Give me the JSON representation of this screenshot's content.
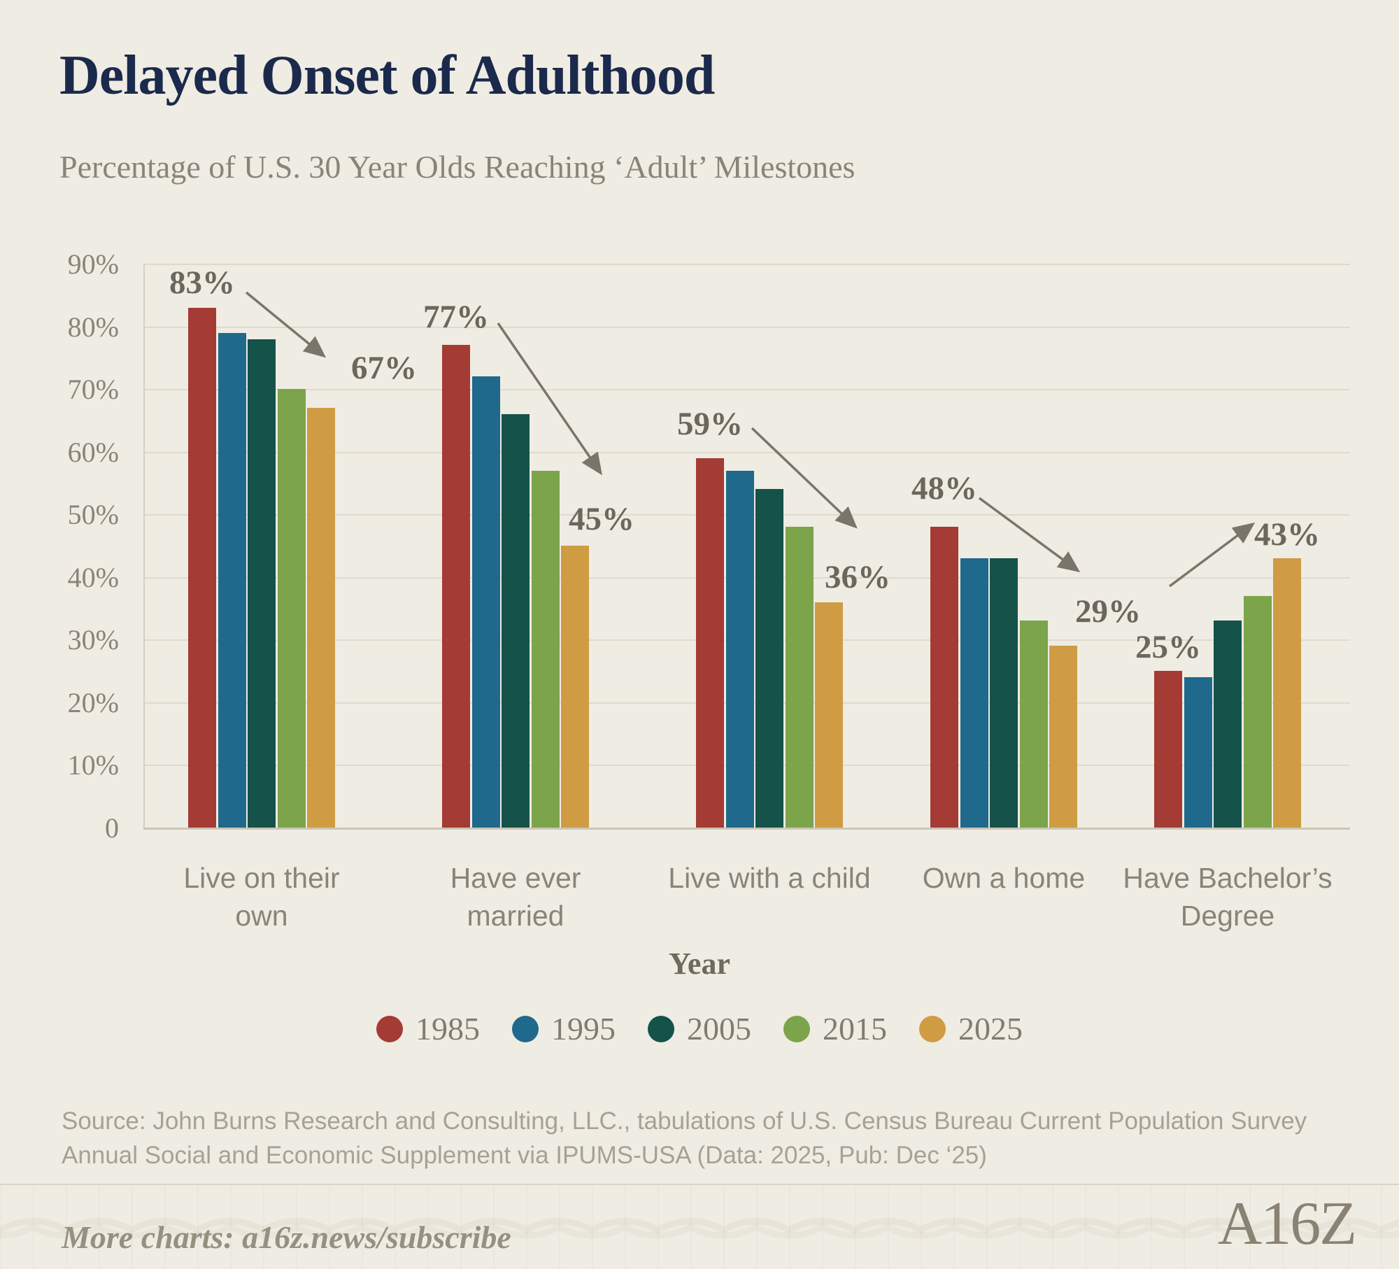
{
  "title": "Delayed Onset of Adulthood",
  "subtitle": "Percentage of U.S. 30 Year Olds Reaching ‘Adult’ Milestones",
  "chart_data": {
    "type": "bar",
    "title": "Delayed Onset of Adulthood",
    "subtitle": "Percentage of U.S. 30 Year Olds Reaching ‘Adult’ Milestones",
    "categories": [
      "Live on their own",
      "Have ever married",
      "Live with a child",
      "Own a home",
      "Have Bachelor’s Degree"
    ],
    "category_lines": [
      [
        "Live on their",
        "own"
      ],
      [
        "Have ever",
        "married"
      ],
      [
        "Live with a child"
      ],
      [
        "Own a home"
      ],
      [
        "Have Bachelor’s",
        "Degree"
      ]
    ],
    "series": [
      {
        "name": "1985",
        "color": "#a43b34",
        "values": [
          83,
          77,
          59,
          48,
          25
        ]
      },
      {
        "name": "1995",
        "color": "#1f698c",
        "values": [
          79,
          72,
          57,
          43,
          24
        ]
      },
      {
        "name": "2005",
        "color": "#14524a",
        "values": [
          78,
          66,
          54,
          43,
          33
        ]
      },
      {
        "name": "2015",
        "color": "#7ba44b",
        "values": [
          70,
          57,
          48,
          33,
          37
        ]
      },
      {
        "name": "2025",
        "color": "#cf9c43",
        "values": [
          67,
          45,
          36,
          29,
          43
        ]
      }
    ],
    "annotations": [
      {
        "category": "Live on their own",
        "start_label": "83%",
        "end_label": "67%",
        "trend": "down"
      },
      {
        "category": "Have ever married",
        "start_label": "77%",
        "end_label": "45%",
        "trend": "down"
      },
      {
        "category": "Live with a child",
        "start_label": "59%",
        "end_label": "36%",
        "trend": "down"
      },
      {
        "category": "Own a home",
        "start_label": "48%",
        "end_label": "29%",
        "trend": "down"
      },
      {
        "category": "Have Bachelor’s Degree",
        "start_label": "25%",
        "end_label": "43%",
        "trend": "up"
      }
    ],
    "y_ticks": [
      "90%",
      "80%",
      "70%",
      "60%",
      "50%",
      "40%",
      "30%",
      "20%",
      "10%",
      "0"
    ],
    "ylim": [
      0,
      90
    ],
    "grid": true,
    "legend_title": "Year",
    "legend_position": "bottom"
  },
  "legend": {
    "title": "Year",
    "items": [
      {
        "label": "1985",
        "color": "#a43b34"
      },
      {
        "label": "1995",
        "color": "#1f698c"
      },
      {
        "label": "2005",
        "color": "#14524a"
      },
      {
        "label": "2015",
        "color": "#7ba44b"
      },
      {
        "label": "2025",
        "color": "#cf9c43"
      }
    ]
  },
  "source": {
    "line1": "Source: John Burns Research and Consulting, LLC., tabulations of U.S. Census Bureau Current Population Survey",
    "line2": "Annual Social and Economic Supplement via IPUMS-USA (Data: 2025, Pub: Dec ‘25)"
  },
  "footer": {
    "text": "More charts: a16z.news/subscribe",
    "logo": "A16Z"
  },
  "colors": {
    "background": "#efece3",
    "title": "#1b2a4c",
    "muted_text": "#8a8478",
    "annotation_text": "#6b675c",
    "gridline": "#e0dacd",
    "arrow": "#7a756a"
  }
}
